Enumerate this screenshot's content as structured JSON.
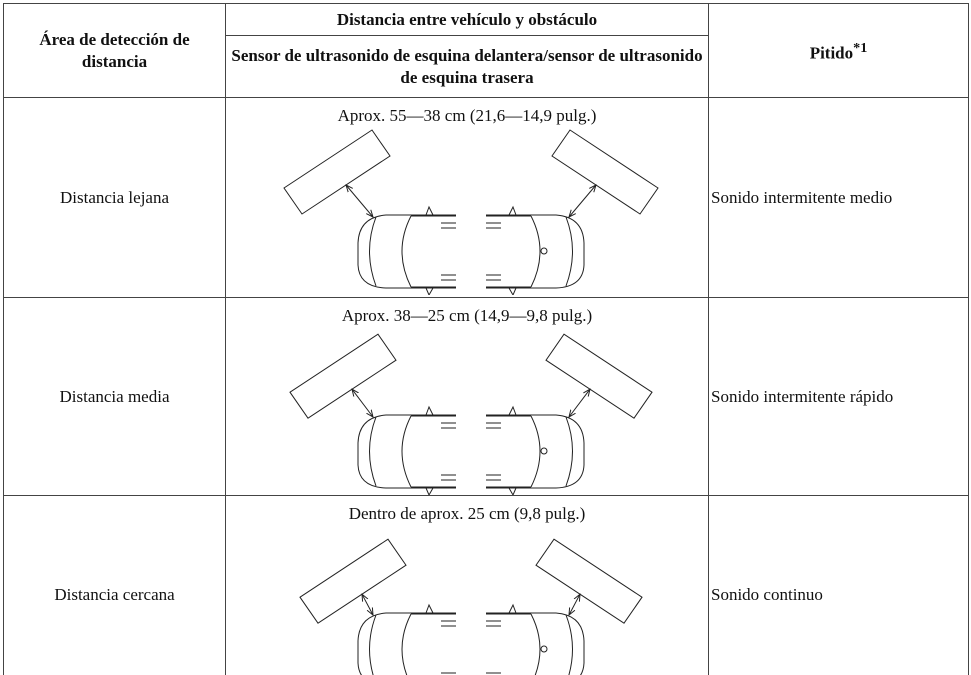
{
  "table": {
    "header": {
      "area": "Área de detección de distancia",
      "distance": "Distancia entre vehículo y obstáculo",
      "sensor": "Sensor de ultrasonido de esquina delantera/sensor de ultrasonido de esquina trasera",
      "beep": "Pitido",
      "beep_note": "*1"
    },
    "rows": [
      {
        "area": "Distancia lejana",
        "distance": "Aprox. 55—38 cm (21,6—14,9 pulg.)",
        "beep": "Sonido intermitente medio"
      },
      {
        "area": "Distancia media",
        "distance": "Aprox. 38—25 cm (14,9—9,8 pulg.)",
        "beep": "Sonido intermitente rápido"
      },
      {
        "area": "Distancia cercana",
        "distance": "Dentro de aprox. 25 cm (9,8 pulg.)",
        "beep": "Sonido continuo"
      }
    ]
  }
}
